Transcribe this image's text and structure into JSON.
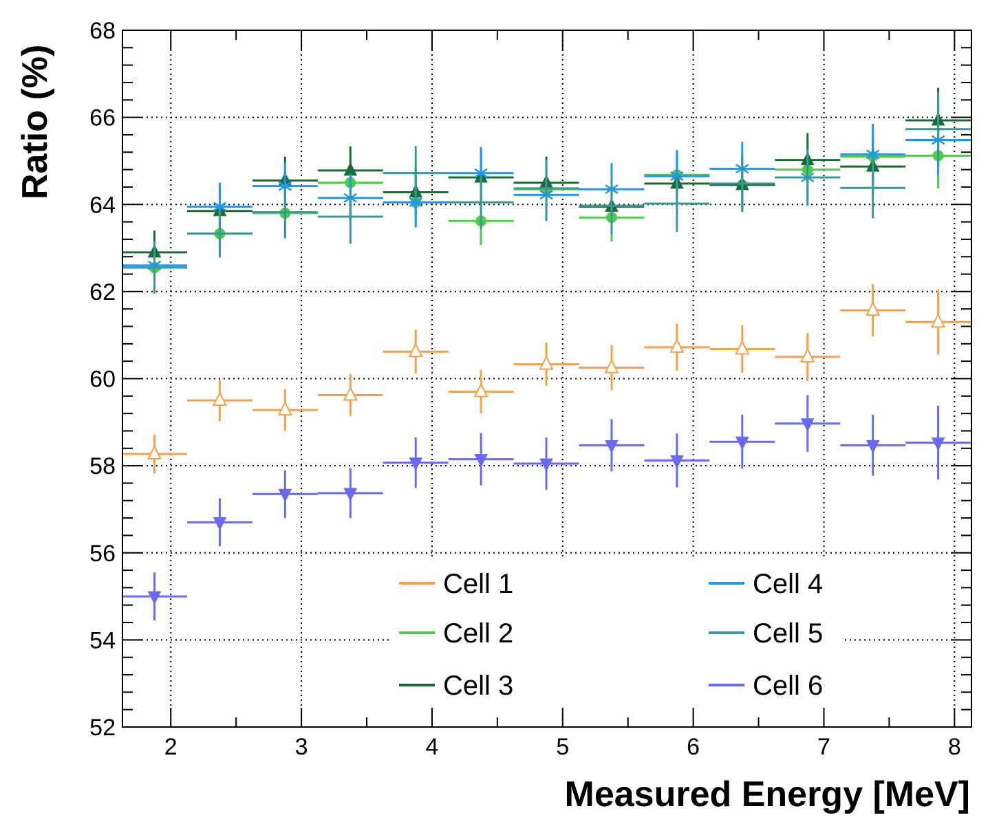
{
  "chart_data": {
    "type": "scatter",
    "xlabel": "Measured Energy [MeV]",
    "ylabel": "Ratio (%)",
    "xlim": [
      1.63,
      8.13
    ],
    "ylim": [
      52,
      68
    ],
    "xticks": [
      2,
      3,
      4,
      5,
      6,
      7,
      8
    ],
    "yticks": [
      52,
      54,
      56,
      58,
      60,
      62,
      64,
      66,
      68
    ],
    "grid": true,
    "legend_position": "bottom-center, two columns",
    "x": [
      1.875,
      2.375,
      2.875,
      3.375,
      3.875,
      4.375,
      4.875,
      5.375,
      5.875,
      6.375,
      6.875,
      7.375,
      7.875
    ],
    "x_half_width": 0.25,
    "series": [
      {
        "name": "Cell 1",
        "color": "#f5a04a",
        "marker": "open-triangle-up",
        "values": [
          58.27,
          59.5,
          59.28,
          59.62,
          60.62,
          59.7,
          60.33,
          60.25,
          60.72,
          60.68,
          60.5,
          61.57,
          61.3
        ],
        "errors": [
          0.45,
          0.48,
          0.48,
          0.48,
          0.5,
          0.5,
          0.5,
          0.52,
          0.54,
          0.55,
          0.55,
          0.6,
          0.75
        ]
      },
      {
        "name": "Cell 2",
        "color": "#4ccd45",
        "marker": "filled-circle",
        "values": [
          62.55,
          63.33,
          63.8,
          64.5,
          64.05,
          63.62,
          64.35,
          63.7,
          64.68,
          64.45,
          64.8,
          65.1,
          65.12
        ],
        "errors": [
          0.45,
          0.48,
          0.5,
          0.52,
          0.55,
          0.55,
          0.55,
          0.55,
          0.55,
          0.6,
          0.6,
          0.65,
          0.75
        ]
      },
      {
        "name": "Cell 3",
        "color": "#1a6b35",
        "marker": "filled-triangle-up",
        "values": [
          62.9,
          63.85,
          64.55,
          64.78,
          64.28,
          64.62,
          64.5,
          63.95,
          64.48,
          64.45,
          65.02,
          64.87,
          65.93
        ],
        "errors": [
          0.5,
          0.5,
          0.55,
          0.55,
          0.55,
          0.6,
          0.6,
          0.6,
          0.62,
          0.62,
          0.62,
          0.68,
          0.75
        ]
      },
      {
        "name": "Cell 4",
        "color": "#2196f3",
        "marker": "asterisk",
        "values": [
          62.6,
          63.95,
          64.42,
          64.15,
          64.05,
          64.72,
          64.22,
          64.35,
          64.65,
          64.82,
          64.62,
          65.15,
          65.48
        ],
        "errors": [
          0.5,
          0.55,
          0.55,
          0.55,
          0.58,
          0.6,
          0.6,
          0.6,
          0.6,
          0.62,
          0.62,
          0.7,
          0.8
        ]
      },
      {
        "name": "Cell 5",
        "color": "#3a9896",
        "marker": "cross",
        "values": [
          62.55,
          63.33,
          63.82,
          63.72,
          64.72,
          64.05,
          64.37,
          63.97,
          64.02,
          64.48,
          64.62,
          64.38,
          65.73
        ],
        "errors": [
          0.6,
          0.55,
          0.6,
          0.62,
          0.62,
          0.62,
          0.65,
          0.65,
          0.65,
          0.65,
          0.65,
          0.7,
          0.85
        ]
      },
      {
        "name": "Cell 6",
        "color": "#6a6af0",
        "marker": "filled-triangle-down",
        "values": [
          55.0,
          56.7,
          57.35,
          57.37,
          58.07,
          58.15,
          58.05,
          58.47,
          58.12,
          58.55,
          58.97,
          58.47,
          58.53
        ],
        "errors": [
          0.55,
          0.55,
          0.55,
          0.57,
          0.58,
          0.6,
          0.6,
          0.6,
          0.62,
          0.62,
          0.65,
          0.7,
          0.85
        ]
      }
    ]
  }
}
